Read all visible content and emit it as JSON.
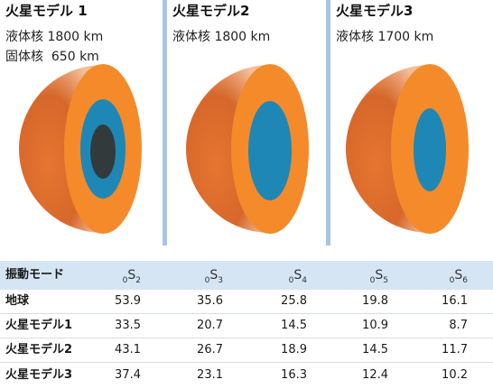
{
  "models": [
    {
      "title": "火星モデル 1",
      "specs": [
        "液体核 1800 km",
        "固体核  650 km"
      ],
      "solid_core": true
    },
    {
      "title": "火星モデル2",
      "specs": [
        "液体核 1800 km"
      ],
      "solid_core": false
    },
    {
      "title": "火星モデル3",
      "specs": [
        "液体核 1700 km"
      ],
      "solid_core": false
    }
  ],
  "colors": {
    "mantle": "#f58a2a",
    "liquid_core": "#1f87b5",
    "solid_core": "#333a3c",
    "separator": "#a7c6e1",
    "table_header": "#d5e5f4"
  },
  "table": {
    "header_label": "振動モード",
    "columns": [
      {
        "pre": "0",
        "base": "S",
        "sub": "2"
      },
      {
        "pre": "0",
        "base": "S",
        "sub": "3"
      },
      {
        "pre": "0",
        "base": "S",
        "sub": "4"
      },
      {
        "pre": "0",
        "base": "S",
        "sub": "5"
      },
      {
        "pre": "0",
        "base": "S",
        "sub": "6"
      }
    ],
    "rows": [
      {
        "label": "地球",
        "values": [
          "53.9",
          "35.6",
          "25.8",
          "19.8",
          "16.1"
        ]
      },
      {
        "label": "火星モデル1",
        "values": [
          "33.5",
          "20.7",
          "14.5",
          "10.9",
          "8.7"
        ]
      },
      {
        "label": "火星モデル2",
        "values": [
          "43.1",
          "26.7",
          "18.9",
          "14.5",
          "11.7"
        ]
      },
      {
        "label": "火星モデル3",
        "values": [
          "37.4",
          "23.1",
          "16.3",
          "12.4",
          "10.2"
        ]
      }
    ]
  }
}
